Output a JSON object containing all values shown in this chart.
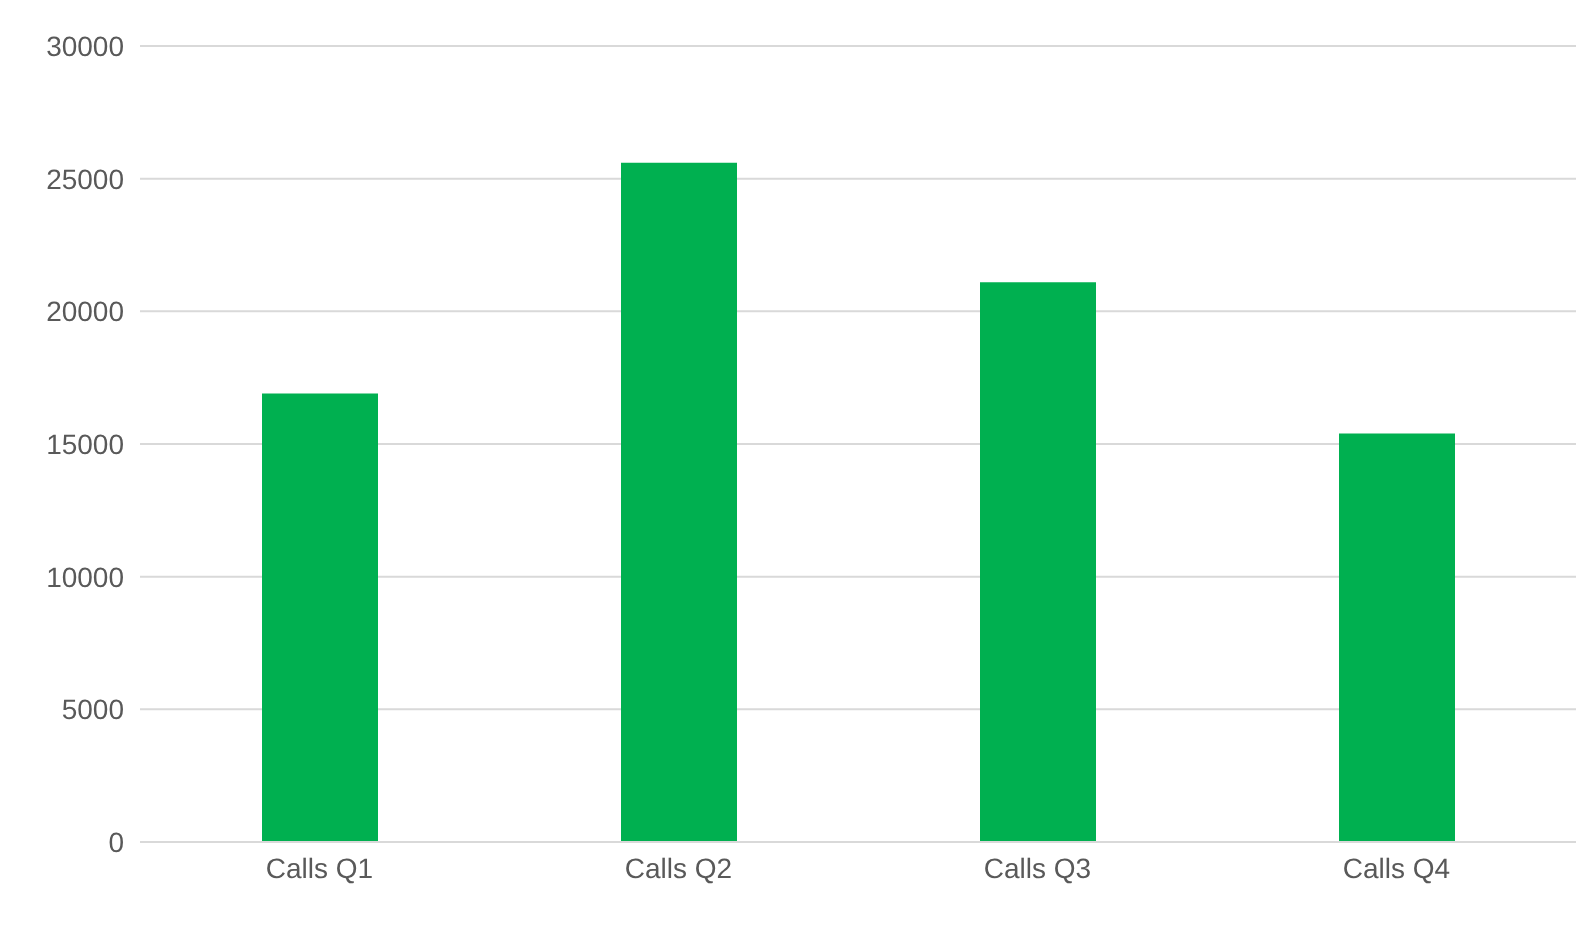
{
  "chart_data": {
    "type": "bar",
    "categories": [
      "Calls Q1",
      "Calls Q2",
      "Calls Q3",
      "Calls Q4"
    ],
    "series": [
      {
        "color": "#00b050",
        "values": [
          16900,
          25600,
          21100,
          15400
        ]
      }
    ],
    "ylim": [
      0,
      30000
    ],
    "yticks": [
      0,
      5000,
      10000,
      15000,
      20000,
      25000,
      30000
    ],
    "grid": "y",
    "legend": false
  }
}
